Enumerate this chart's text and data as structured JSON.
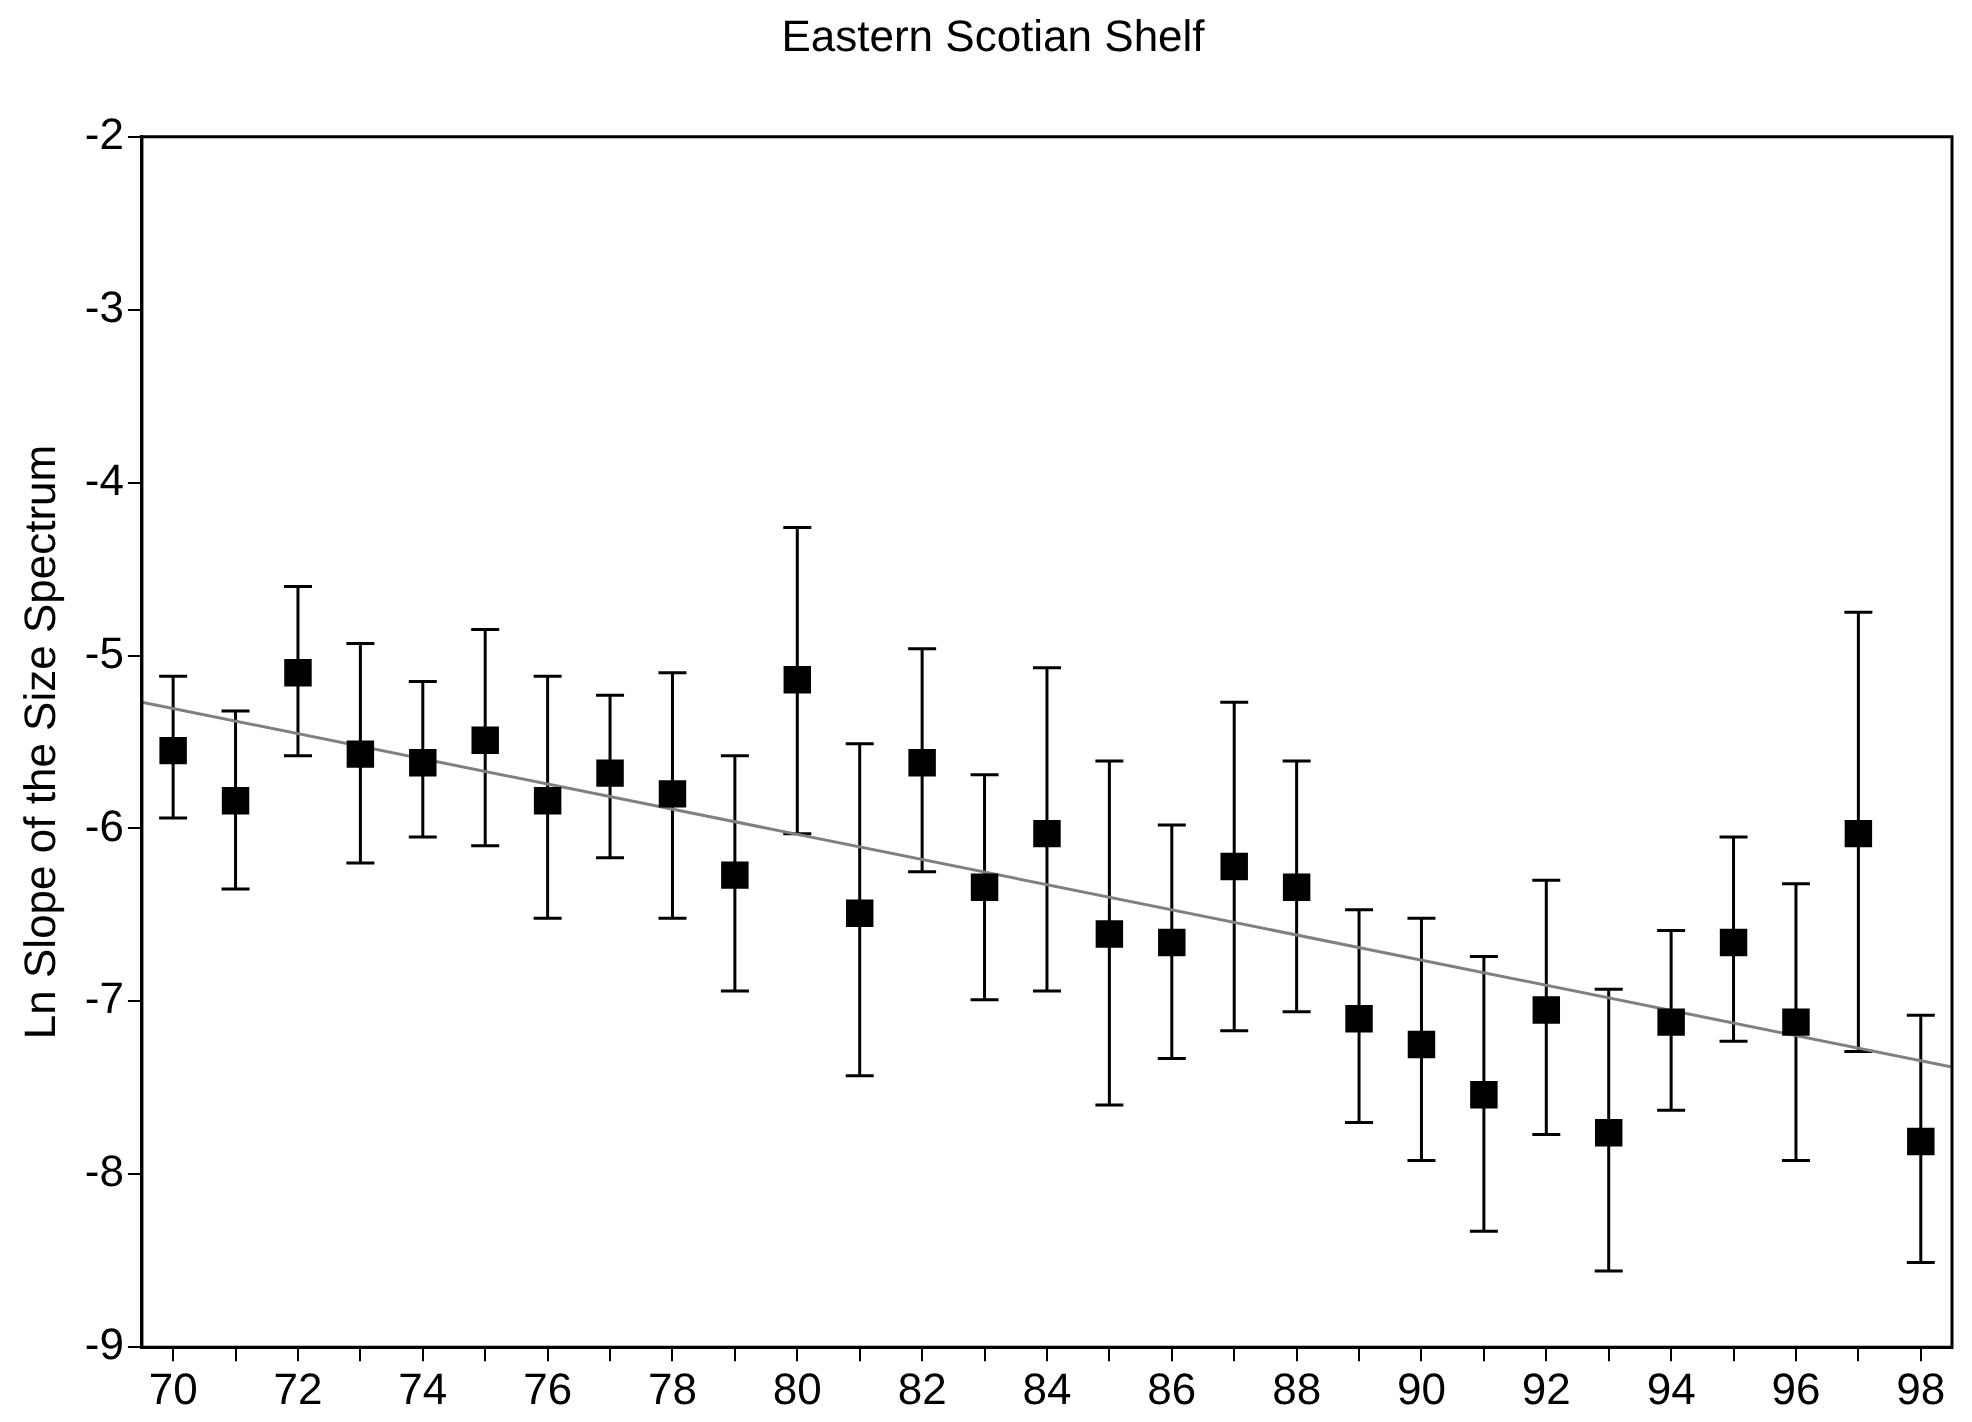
{
  "chart_data": {
    "type": "scatter",
    "title": "Eastern Scotian Shelf",
    "ylabel": "Ln Slope of the Size Spectrum",
    "legend": false,
    "x": [
      70,
      71,
      72,
      73,
      74,
      75,
      76,
      77,
      78,
      79,
      80,
      81,
      82,
      83,
      84,
      85,
      86,
      87,
      88,
      89,
      90,
      91,
      92,
      93,
      94,
      95,
      96,
      97,
      98
    ],
    "xlim": [
      69.5,
      98.5
    ],
    "xticks": [
      70,
      {
        "value": 71,
        "label": null
      },
      72,
      {
        "value": 73,
        "label": null
      },
      74,
      {
        "value": 75,
        "label": null
      },
      76,
      {
        "value": 77,
        "label": null
      },
      78,
      {
        "value": 79,
        "label": null
      },
      80,
      {
        "value": 81,
        "label": null
      },
      82,
      {
        "value": 83,
        "label": null
      },
      84,
      {
        "value": 85,
        "label": null
      },
      86,
      {
        "value": 87,
        "label": null
      },
      88,
      {
        "value": 89,
        "label": null
      },
      90,
      {
        "value": 91,
        "label": null
      },
      92,
      {
        "value": 93,
        "label": null
      },
      94,
      {
        "value": 95,
        "label": null
      },
      96,
      {
        "value": 97,
        "label": null
      },
      98
    ],
    "ylim": [
      -9,
      -2
    ],
    "yticks": [
      -9,
      -8,
      -7,
      -6,
      -5,
      -4,
      -3,
      -2
    ],
    "series": [
      {
        "marker": "square",
        "color": "#000000",
        "values": [
          -5.55,
          -5.84,
          -5.1,
          -5.57,
          -5.62,
          -5.49,
          -5.84,
          -5.68,
          -5.8,
          -6.27,
          -5.14,
          -6.49,
          -5.62,
          -6.34,
          -6.03,
          -6.61,
          -6.66,
          -6.22,
          -6.34,
          -7.1,
          -7.25,
          -7.54,
          -7.05,
          -7.76,
          -7.12,
          -6.66,
          -7.12,
          -6.03,
          -7.81
        ],
        "errors": [
          [
            -5.94,
            -5.12
          ],
          [
            -6.35,
            -5.32
          ],
          [
            -5.58,
            -4.6
          ],
          [
            -6.2,
            -4.93
          ],
          [
            -6.05,
            -5.15
          ],
          [
            -6.1,
            -4.85
          ],
          [
            -6.52,
            -5.12
          ],
          [
            -6.17,
            -5.23
          ],
          [
            -6.52,
            -5.1
          ],
          [
            -6.94,
            -5.58
          ],
          [
            -6.03,
            -4.26
          ],
          [
            -7.43,
            -5.51
          ],
          [
            -6.25,
            -4.96
          ],
          [
            -6.99,
            -5.69
          ],
          [
            -6.94,
            -5.07
          ],
          [
            -7.6,
            -5.61
          ],
          [
            -7.33,
            -5.98
          ],
          [
            -7.17,
            -5.27
          ],
          [
            -7.06,
            -5.61
          ],
          [
            -7.7,
            -6.47
          ],
          [
            -7.92,
            -6.52
          ],
          [
            -8.33,
            -6.74
          ],
          [
            -7.77,
            -6.3
          ],
          [
            -8.56,
            -6.93
          ],
          [
            -7.63,
            -6.59
          ],
          [
            -7.23,
            -6.05
          ],
          [
            -7.92,
            -6.32
          ],
          [
            -7.29,
            -4.75
          ],
          [
            -8.51,
            -7.08
          ]
        ]
      },
      {
        "type": "line",
        "color": "#808080",
        "x": [
          69.5,
          98.5
        ],
        "values": [
          -5.27,
          -7.38
        ]
      }
    ]
  }
}
